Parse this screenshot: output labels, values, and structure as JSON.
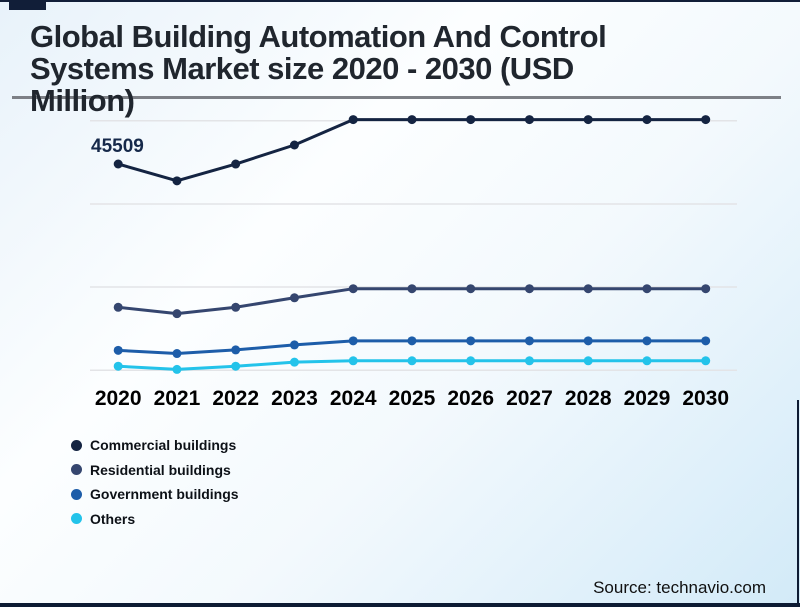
{
  "page": {
    "title_lines": {
      "line1": "Global Building Automation And Control",
      "line2": "Systems Market size 2020 - 2030 (USD",
      "line3": "Million)"
    },
    "source_caption": "Source: technavio.com"
  },
  "colors": {
    "frame": "#0d1b33",
    "accent_block": "#111e38",
    "divider": "#7d8086",
    "gridline": "#e3e4e7",
    "title_text": "#20262e",
    "background_start": "#e8f2fa",
    "background_end": "#d2eaf8"
  },
  "chart_data": {
    "type": "line",
    "title": "Global Building Automation And Control Systems Market size 2020 - 2030 (USD Million)",
    "xlabel": "",
    "ylabel": "USD Million",
    "categories": [
      "2020",
      "2021",
      "2022",
      "2023",
      "2024",
      "2025",
      "2026",
      "2027",
      "2028",
      "2029",
      "2030"
    ],
    "y_axis_labels_visible": false,
    "grid": "horizontal",
    "gridline_count": 4,
    "ylim": [
      0,
      58500
    ],
    "legend_position": "bottom-left",
    "annotation": {
      "text": "45509",
      "series": "Commercial buildings",
      "x": "2020",
      "value": 45509
    },
    "series": [
      {
        "name": "Commercial buildings",
        "color": "#142442",
        "values": [
          45509,
          41800,
          45500,
          49700,
          55300,
          55300,
          55300,
          55300,
          55300,
          55300,
          55300
        ]
      },
      {
        "name": "Residential buildings",
        "color": "#35466f",
        "values": [
          13900,
          12500,
          13900,
          16000,
          18000,
          18000,
          18000,
          18000,
          18000,
          18000,
          18000
        ]
      },
      {
        "name": "Government buildings",
        "color": "#1d5da9",
        "values": [
          4400,
          3700,
          4500,
          5600,
          6500,
          6500,
          6500,
          6500,
          6500,
          6500,
          6500
        ]
      },
      {
        "name": "Others",
        "color": "#23c3ea",
        "values": [
          900,
          200,
          900,
          1800,
          2100,
          2100,
          2100,
          2100,
          2100,
          2100,
          2100
        ]
      }
    ]
  }
}
